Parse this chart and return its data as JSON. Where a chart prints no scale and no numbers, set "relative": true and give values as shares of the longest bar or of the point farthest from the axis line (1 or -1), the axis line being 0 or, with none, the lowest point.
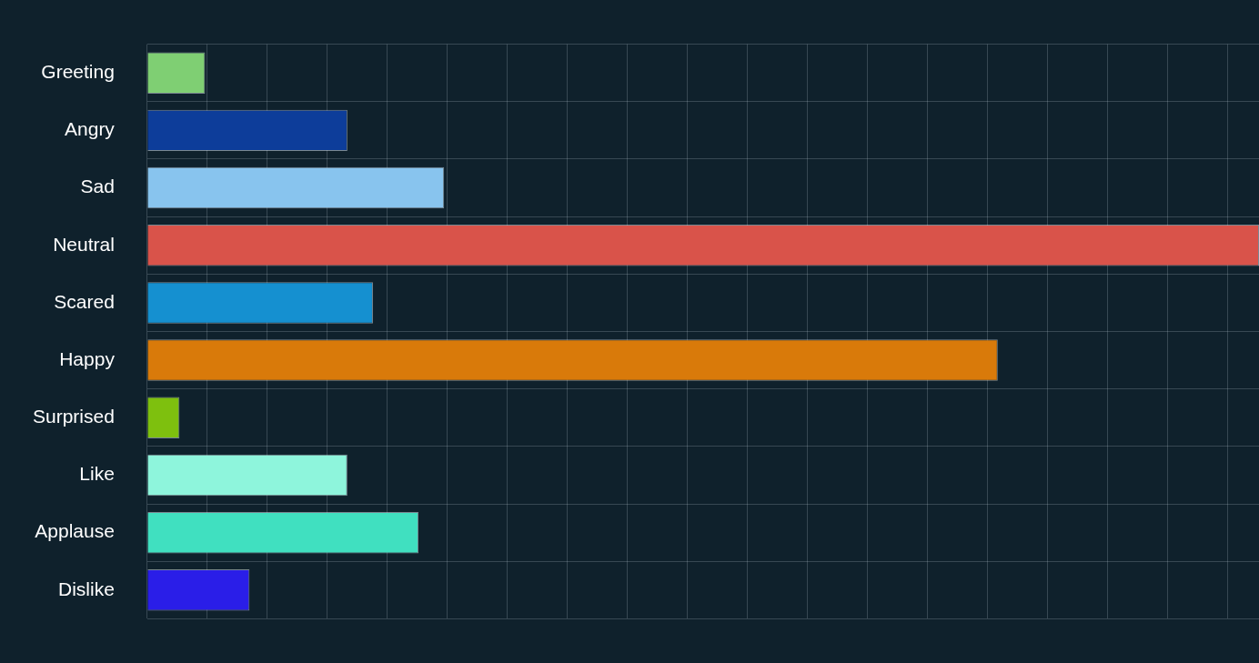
{
  "chart_data": {
    "type": "bar",
    "orientation": "horizontal",
    "relative": true,
    "grid": true,
    "legend": false,
    "categories": [
      "Greeting",
      "Angry",
      "Sad",
      "Neutral",
      "Scared",
      "Happy",
      "Surprised",
      "Like",
      "Applause",
      "Dislike"
    ],
    "values": [
      0.052,
      0.18,
      0.267,
      1,
      0.203,
      0.765,
      0.029,
      0.18,
      0.244,
      0.092
    ],
    "colors": [
      "#7fcf73",
      "#0d3d9a",
      "#88c4ee",
      "#d9534a",
      "#1590d0",
      "#d97a0a",
      "#7ec00e",
      "#8ef5dc",
      "#40e0c0",
      "#2a1ee8"
    ]
  }
}
